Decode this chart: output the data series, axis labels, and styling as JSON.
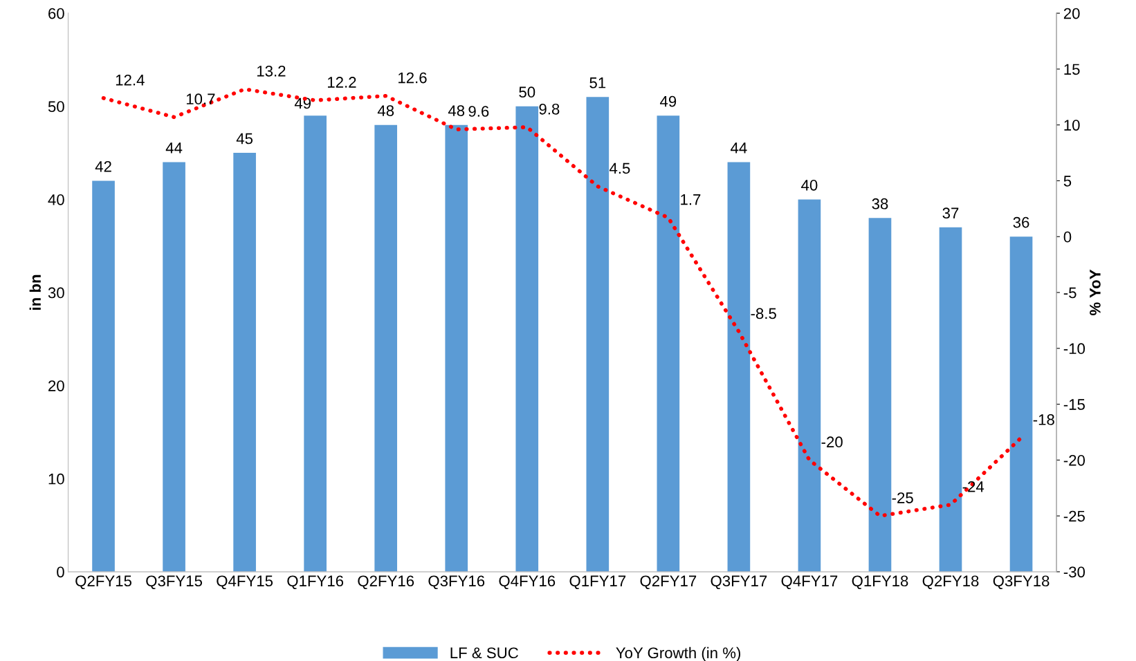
{
  "chart_data": {
    "type": "bar",
    "ylabel": "in bn",
    "y2label": "% YoY",
    "categories": [
      "Q2FY15",
      "Q3FY15",
      "Q4FY15",
      "Q1FY16",
      "Q2FY16",
      "Q3FY16",
      "Q4FY16",
      "Q1FY17",
      "Q2FY17",
      "Q3FY17",
      "Q4FY17",
      "Q1FY18",
      "Q2FY18",
      "Q3FY18"
    ],
    "series": [
      {
        "name": "LF & SUC",
        "color": "#5b9bd5",
        "values": [
          42,
          44,
          45,
          49,
          48,
          48,
          50,
          51,
          49,
          44,
          40,
          38,
          37,
          36
        ]
      },
      {
        "name": "YoY Growth (in %)",
        "type": "line",
        "axis": "y2",
        "color": "#ff0000",
        "line_style": "dotted",
        "marker": "none",
        "values": [
          12.4,
          10.7,
          13.2,
          12.2,
          12.6,
          9.6,
          9.8,
          4.5,
          1.7,
          -8.5,
          -20,
          -25,
          -24,
          -18
        ]
      }
    ],
    "ylim": [
      0,
      60
    ],
    "yticks": [
      0,
      10,
      20,
      30,
      40,
      50,
      60
    ],
    "y2lim": [
      -30,
      20
    ],
    "y2ticks": [
      -30,
      -25,
      -20,
      -15,
      -10,
      -5,
      0,
      5,
      10,
      15,
      20
    ],
    "data_labels": true,
    "grid": false,
    "legend": "bottom"
  }
}
